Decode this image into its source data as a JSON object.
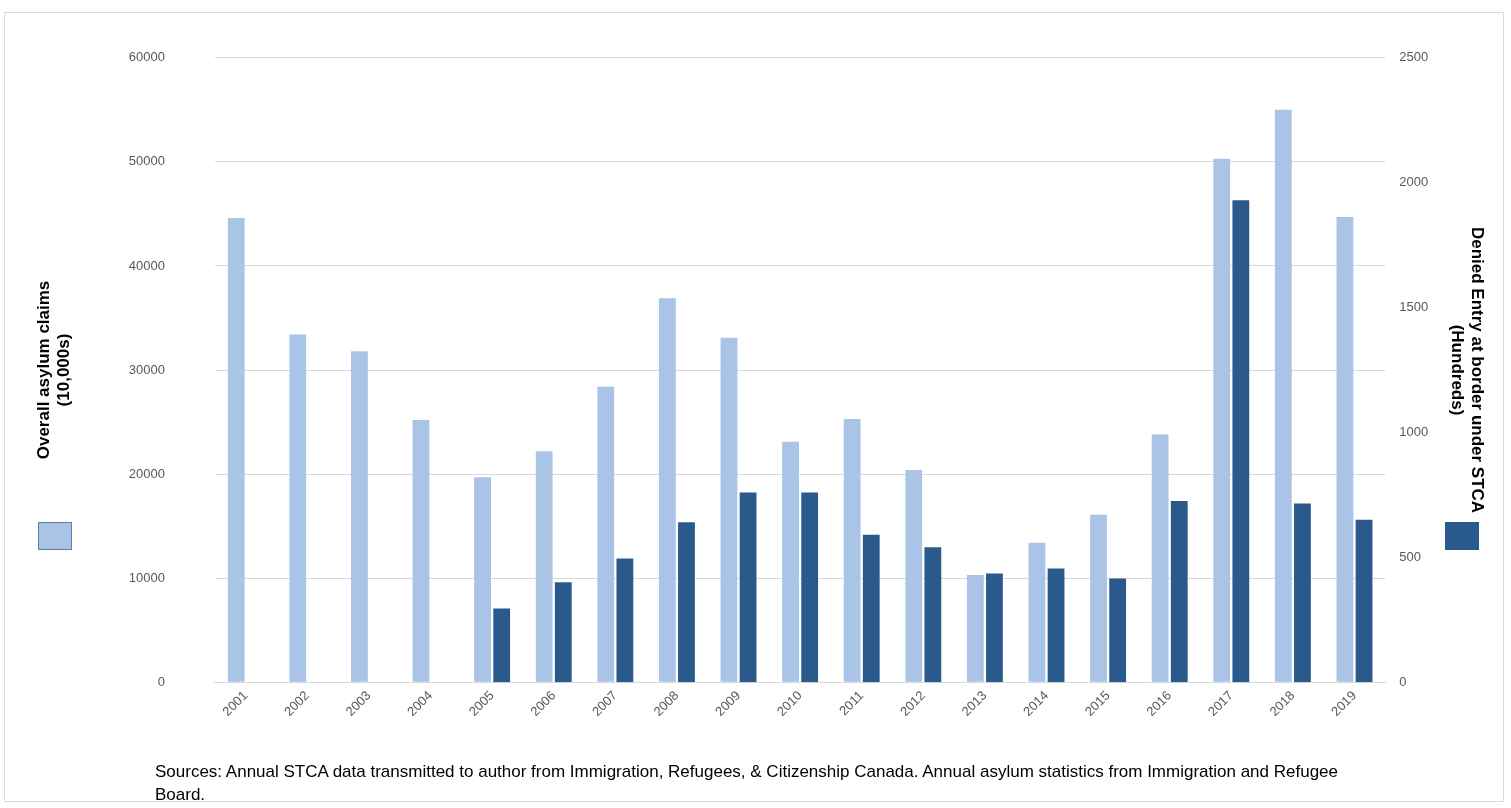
{
  "chart_data": {
    "type": "bar",
    "categories": [
      "2001",
      "2002",
      "2003",
      "2004",
      "2005",
      "2006",
      "2007",
      "2008",
      "2009",
      "2010",
      "2011",
      "2012",
      "2013",
      "2014",
      "2015",
      "2016",
      "2017",
      "2018",
      "2019"
    ],
    "series": [
      {
        "color": "#a9c4e6",
        "values": [
          44600,
          33400,
          31800,
          25200,
          19700,
          22200,
          28400,
          36900,
          33100,
          23100,
          25300,
          20400,
          10300,
          13400,
          16100,
          23800,
          50300,
          55000,
          44700
        ]
      },
      {
        "color": "#2a5a8c",
        "axis": "y2",
        "values": [
          null,
          null,
          null,
          null,
          295,
          400,
          495,
          640,
          760,
          760,
          590,
          540,
          435,
          455,
          415,
          725,
          1930,
          715,
          650
        ]
      }
    ],
    "ylabel": "Overall asylum claims (10,000s)",
    "y2label": "Denied Entry at border under STCA (Hundreds)",
    "ylim": [
      0,
      60000
    ],
    "yticks": [
      0,
      10000,
      20000,
      30000,
      40000,
      50000,
      60000
    ],
    "y2lim": [
      0,
      2500
    ],
    "y2ticks": [
      0,
      500,
      1000,
      1500,
      2000,
      2500
    ],
    "grid": "y",
    "legend": false,
    "annotations": [
      "Sources: Annual STCA data transmitted to author from Immigration, Refugees, & Citizenship Canada. Annual asylum statistics from Immigration and Refugee Board."
    ]
  }
}
